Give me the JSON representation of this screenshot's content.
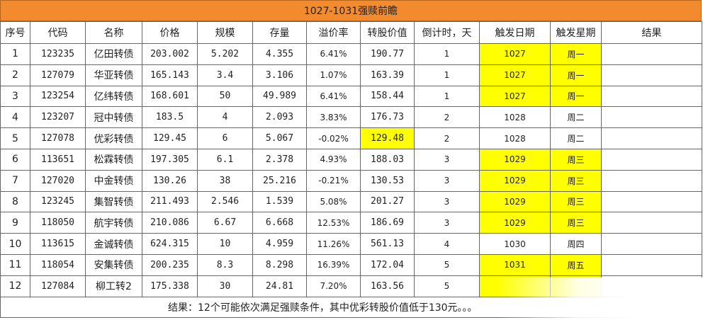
{
  "title": "1027-1031强赎前瞻",
  "headers": [
    "序号",
    "代码",
    "名称",
    "价格",
    "规模",
    "存量",
    "溢价率",
    "转股价值",
    "倒计时，天",
    "触发日期",
    "触发星期",
    "结果"
  ],
  "rows": [
    {
      "idx": "1",
      "code": "123235",
      "name": "亿田转债",
      "price": "203.002",
      "scale": "5.202",
      "stock": "4.355",
      "premium": "6.41%",
      "conv": "190.77",
      "countdown": "1",
      "date": "1027",
      "weekday": "周一",
      "result": ""
    },
    {
      "idx": "2",
      "code": "127079",
      "name": "华亚转债",
      "price": "165.143",
      "scale": "3.4",
      "stock": "3.106",
      "premium": "1.07%",
      "conv": "163.39",
      "countdown": "1",
      "date": "1027",
      "weekday": "周一",
      "result": ""
    },
    {
      "idx": "3",
      "code": "123254",
      "name": "亿纬转债",
      "price": "168.601",
      "scale": "50",
      "stock": "49.989",
      "premium": "6.41%",
      "conv": "158.44",
      "countdown": "1",
      "date": "1027",
      "weekday": "周一",
      "result": ""
    },
    {
      "idx": "4",
      "code": "123207",
      "name": "冠中转债",
      "price": "183.5",
      "scale": "4",
      "stock": "2.093",
      "premium": "3.83%",
      "conv": "176.73",
      "countdown": "2",
      "date": "1028",
      "weekday": "周二",
      "result": ""
    },
    {
      "idx": "5",
      "code": "127078",
      "name": "优彩转债",
      "price": "129.45",
      "scale": "6",
      "stock": "5.067",
      "premium": "-0.02%",
      "conv": "129.48",
      "countdown": "2",
      "date": "1028",
      "weekday": "周二",
      "result": ""
    },
    {
      "idx": "6",
      "code": "113651",
      "name": "松霖转债",
      "price": "197.305",
      "scale": "6.1",
      "stock": "2.378",
      "premium": "4.93%",
      "conv": "188.03",
      "countdown": "3",
      "date": "1029",
      "weekday": "周三",
      "result": ""
    },
    {
      "idx": "7",
      "code": "127020",
      "name": "中金转债",
      "price": "130.26",
      "scale": "38",
      "stock": "25.216",
      "premium": "-0.21%",
      "conv": "130.53",
      "countdown": "3",
      "date": "1029",
      "weekday": "周三",
      "result": ""
    },
    {
      "idx": "8",
      "code": "123245",
      "name": "集智转债",
      "price": "211.493",
      "scale": "2.546",
      "stock": "1.539",
      "premium": "5.08%",
      "conv": "201.27",
      "countdown": "3",
      "date": "1029",
      "weekday": "周三",
      "result": ""
    },
    {
      "idx": "9",
      "code": "118050",
      "name": "航宇转债",
      "price": "210.086",
      "scale": "6.67",
      "stock": "6.668",
      "premium": "12.53%",
      "conv": "186.69",
      "countdown": "3",
      "date": "1029",
      "weekday": "周三",
      "result": ""
    },
    {
      "idx": "10",
      "code": "113615",
      "name": "金诚转债",
      "price": "624.315",
      "scale": "10",
      "stock": "4.959",
      "premium": "11.26%",
      "conv": "561.13",
      "countdown": "4",
      "date": "1030",
      "weekday": "周四",
      "result": ""
    },
    {
      "idx": "11",
      "code": "118054",
      "name": "安集转债",
      "price": "200.235",
      "scale": "8.3",
      "stock": "8.298",
      "premium": "16.39%",
      "conv": "172.04",
      "countdown": "5",
      "date": "1031",
      "weekday": "周五",
      "result": ""
    },
    {
      "idx": "12",
      "code": "127084",
      "name": "柳工转2",
      "price": "175.338",
      "scale": "30",
      "stock": "24.81",
      "premium": "7.20%",
      "conv": "163.56",
      "countdown": "5",
      "date": "",
      "weekday": "",
      "result": ""
    }
  ],
  "highlight": {
    "date_rows": [
      0,
      1,
      2,
      5,
      6,
      7,
      8,
      10,
      11
    ],
    "weekday_rows": [
      0,
      1,
      2,
      5,
      6,
      7,
      8,
      10,
      11
    ],
    "conv_rows": [
      4
    ],
    "color": "#ffff00"
  },
  "footer": "结果：12个可能依次满足强赎条件，其中优彩转股价值低于130元。。。",
  "colors": {
    "title_bg": "#f28a2e",
    "highlight": "#ffff00",
    "border": "#666666"
  }
}
